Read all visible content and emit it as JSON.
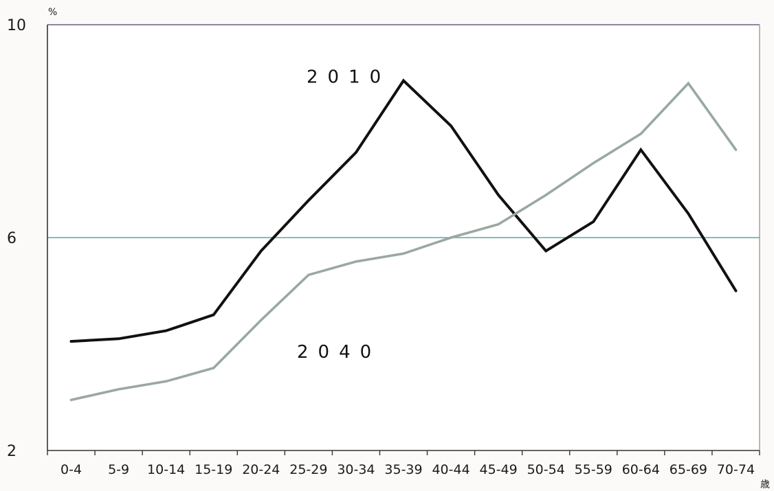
{
  "chart_data": {
    "type": "line",
    "y_unit": "%",
    "x_unit": "歳",
    "categories": [
      "0-4",
      "5-9",
      "10-14",
      "15-19",
      "20-24",
      "25-29",
      "30-34",
      "35-39",
      "40-44",
      "45-49",
      "50-54",
      "55-59",
      "60-64",
      "65-69",
      "70-74"
    ],
    "ylim": [
      2,
      10
    ],
    "yticks": [
      "10",
      "6",
      "2"
    ],
    "grid": "horizontal",
    "series": [
      {
        "name": "2010",
        "color": "#111111",
        "values": [
          4.05,
          4.1,
          4.25,
          4.55,
          5.75,
          6.7,
          7.6,
          8.95,
          8.1,
          6.8,
          5.75,
          6.3,
          7.65,
          6.45,
          5.0
        ]
      },
      {
        "name": "2040",
        "color": "#9aa8a2",
        "values": [
          2.95,
          3.15,
          3.3,
          3.55,
          4.45,
          5.3,
          5.55,
          5.7,
          6.0,
          6.25,
          6.8,
          7.4,
          7.95,
          8.9,
          7.65
        ]
      }
    ]
  }
}
